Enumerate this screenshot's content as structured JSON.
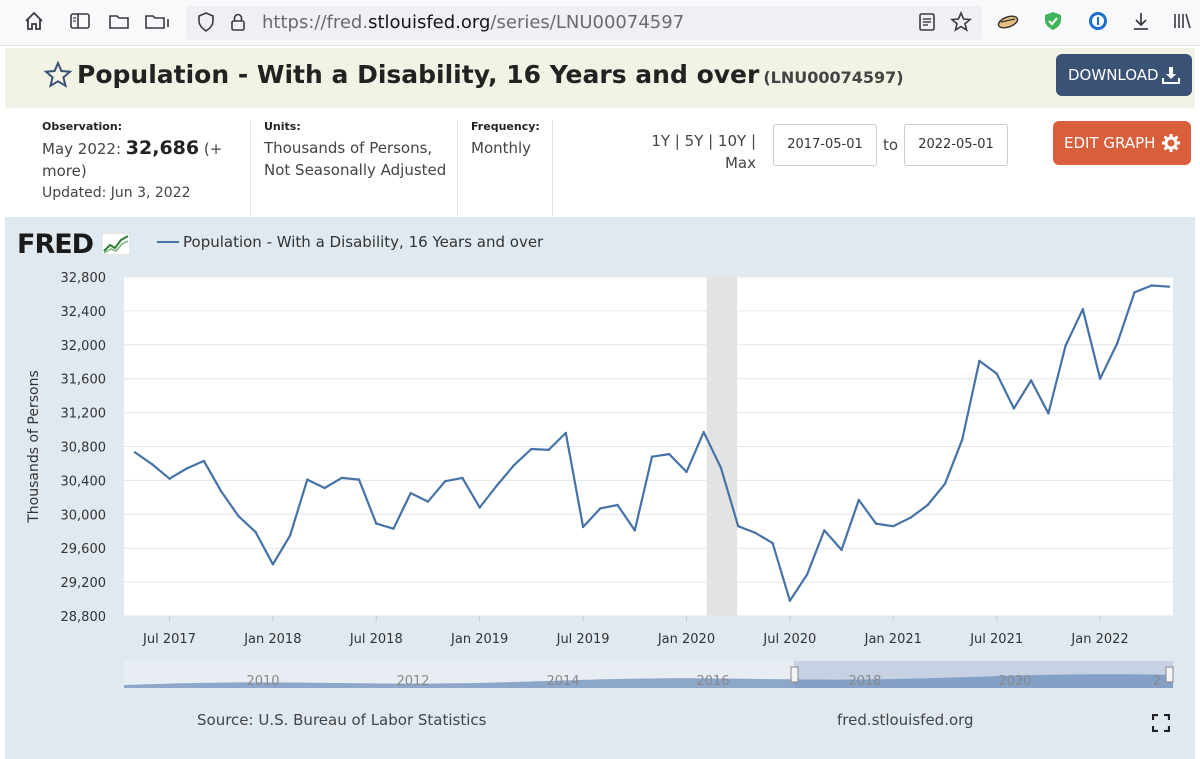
{
  "browser": {
    "url_prefix": "https://fred.",
    "url_host": "stlouisfed.org",
    "url_path": "/series/LNU00074597"
  },
  "header": {
    "title": "Population - With a Disability, 16 Years and over",
    "series_id": "(LNU00074597)",
    "download_label": "DOWNLOAD"
  },
  "meta": {
    "observation_label": "Observation:",
    "observation_date": "May 2022:",
    "observation_value": "32,686",
    "observation_more": "(+ more)",
    "updated": "Updated: Jun 3, 2022",
    "units_label": "Units:",
    "units_line1": "Thousands of Persons,",
    "units_line2": "Not Seasonally Adjusted",
    "frequency_label": "Frequency:",
    "frequency_value": "Monthly",
    "range_links": "1Y | 5Y | 10Y | Max",
    "start_date": "2017-05-01",
    "to_label": "to",
    "end_date": "2022-05-01",
    "edit_label": "EDIT GRAPH"
  },
  "footer": {
    "logo_text": "FRED",
    "source": "Source: U.S. Bureau of Labor Statistics",
    "site": "fred.stlouisfed.org"
  },
  "chart_data": {
    "type": "line",
    "title": "",
    "legend": "Population - With a Disability, 16 Years and over",
    "ylabel": "Thousands of Persons",
    "xlabel": "",
    "ylim": [
      28800,
      32800
    ],
    "yticks": [
      28800,
      29200,
      29600,
      30000,
      30400,
      30800,
      31200,
      31600,
      32000,
      32400,
      32800
    ],
    "ytick_labels": [
      "28,800",
      "29,200",
      "29,600",
      "30,000",
      "30,400",
      "30,800",
      "31,200",
      "31,600",
      "32,000",
      "32,400",
      "32,800"
    ],
    "xticks": [
      {
        "index": 2,
        "label": "Jul 2017"
      },
      {
        "index": 8,
        "label": "Jan 2018"
      },
      {
        "index": 14,
        "label": "Jul 2018"
      },
      {
        "index": 20,
        "label": "Jan 2019"
      },
      {
        "index": 26,
        "label": "Jul 2019"
      },
      {
        "index": 32,
        "label": "Jan 2020"
      },
      {
        "index": 38,
        "label": "Jul 2020"
      },
      {
        "index": 44,
        "label": "Jan 2021"
      },
      {
        "index": 50,
        "label": "Jul 2021"
      },
      {
        "index": 56,
        "label": "Jan 2022"
      }
    ],
    "recession": {
      "start_index": 33,
      "end_index": 35
    },
    "series": [
      {
        "name": "Population - With a Disability, 16 Years and over",
        "start": "2017-05",
        "values": [
          30730,
          30590,
          30420,
          30540,
          30630,
          30270,
          29980,
          29790,
          29410,
          29750,
          30410,
          30310,
          30430,
          30410,
          29890,
          29830,
          30250,
          30150,
          30390,
          30430,
          30080,
          30340,
          30580,
          30770,
          30760,
          30960,
          29850,
          30070,
          30110,
          29810,
          30680,
          30710,
          30500,
          30970,
          30550,
          29860,
          29780,
          29660,
          28980,
          29290,
          29810,
          29580,
          30170,
          29890,
          29860,
          29960,
          30110,
          30360,
          30880,
          31810,
          31660,
          31250,
          31580,
          31190,
          31990,
          32420,
          31600,
          32020,
          32620,
          32700,
          32686
        ],
        "color": "#4572a7"
      }
    ],
    "navigator_labels": [
      "2010",
      "2012",
      "2014",
      "2016",
      "2018",
      "2020",
      "2"
    ]
  }
}
